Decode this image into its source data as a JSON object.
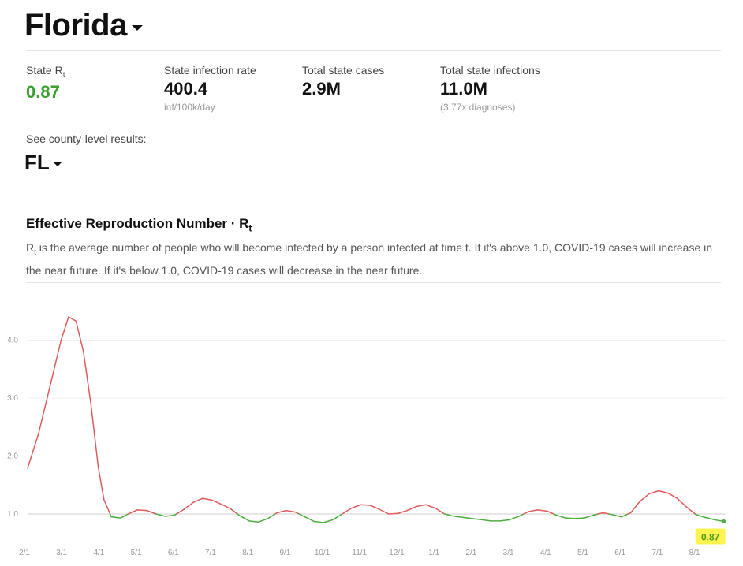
{
  "header": {
    "state_name": "Florida"
  },
  "stats": [
    {
      "label": "State R",
      "label_sub": "t",
      "value": "0.87",
      "note": ""
    },
    {
      "label": "State infection rate",
      "label_sub": "",
      "value": "400.4",
      "note": "inf/100k/day"
    },
    {
      "label": "Total state cases",
      "label_sub": "",
      "value": "2.9M",
      "note": ""
    },
    {
      "label": "Total state infections",
      "label_sub": "",
      "value": "11.0M",
      "note": "(3.77x diagnoses)"
    }
  ],
  "county": {
    "label": "See county-level results:",
    "selected": "FL"
  },
  "section": {
    "title": "Effective Reproduction Number · R",
    "title_sub": "t",
    "desc_prefix": "R",
    "desc_sub": "t",
    "desc_text": " is the average number of people who will become infected by a person infected at time t. If it's above 1.0, COVID-19 cases will increase in the near future. If it's below 1.0, COVID-19 cases will decrease in the near future."
  },
  "colors": {
    "above": "#e05a5a",
    "below": "#4cae3d",
    "accent_value": "#3aa02e",
    "highlight": "#fff44f"
  },
  "chart_data": {
    "type": "line",
    "title": "",
    "xlabel": "",
    "ylabel": "",
    "x_ticks": [
      "2/1",
      "3/1",
      "4/1",
      "5/1",
      "6/1",
      "7/1",
      "8/1",
      "9/1",
      "10/1",
      "11/1",
      "12/1",
      "1/1",
      "2/1",
      "3/1",
      "4/1",
      "5/1",
      "6/1",
      "7/1",
      "8/1"
    ],
    "y_ticks": [
      "1.0",
      "2.0",
      "3.0",
      "4.0"
    ],
    "ylim": [
      0.65,
      4.9
    ],
    "threshold": 1.0,
    "series": [
      {
        "name": "",
        "x_months": [
          0,
          0.3,
          0.6,
          0.9,
          1.1,
          1.3,
          1.5,
          1.7,
          1.9,
          2.05,
          2.25,
          2.5,
          2.7,
          2.95,
          3.2,
          3.45,
          3.7,
          3.95,
          4.2,
          4.45,
          4.7,
          4.95,
          5.2,
          5.45,
          5.7,
          5.95,
          6.2,
          6.45,
          6.7,
          6.95,
          7.2,
          7.45,
          7.7,
          7.95,
          8.2,
          8.45,
          8.7,
          8.95,
          9.2,
          9.45,
          9.7,
          9.95,
          10.2,
          10.45,
          10.7,
          10.95,
          11.2,
          11.45,
          11.7,
          11.95,
          12.2,
          12.45,
          12.7,
          12.95,
          13.2,
          13.45,
          13.7,
          13.95,
          14.2,
          14.45,
          14.7,
          14.95,
          15.2,
          15.45,
          15.7,
          15.95,
          16.2,
          16.45,
          16.7,
          16.95,
          17.2,
          17.45,
          17.7,
          17.95,
          18.2,
          18.45,
          18.7
        ],
        "values": [
          1.79,
          2.4,
          3.2,
          4.0,
          4.4,
          4.33,
          3.8,
          2.9,
          1.8,
          1.25,
          0.95,
          0.93,
          1.0,
          1.07,
          1.06,
          1.0,
          0.96,
          0.98,
          1.08,
          1.2,
          1.27,
          1.24,
          1.17,
          1.09,
          0.97,
          0.88,
          0.86,
          0.92,
          1.02,
          1.06,
          1.03,
          0.95,
          0.87,
          0.85,
          0.9,
          1.0,
          1.1,
          1.16,
          1.15,
          1.08,
          1.0,
          1.01,
          1.06,
          1.13,
          1.16,
          1.1,
          1.0,
          0.96,
          0.94,
          0.92,
          0.9,
          0.88,
          0.88,
          0.9,
          0.96,
          1.04,
          1.07,
          1.05,
          0.98,
          0.93,
          0.92,
          0.93,
          0.98,
          1.02,
          0.99,
          0.95,
          1.02,
          1.22,
          1.35,
          1.4,
          1.36,
          1.27,
          1.12,
          0.99,
          0.94,
          0.9,
          0.87
        ]
      }
    ],
    "last_value_label": "0.87"
  }
}
